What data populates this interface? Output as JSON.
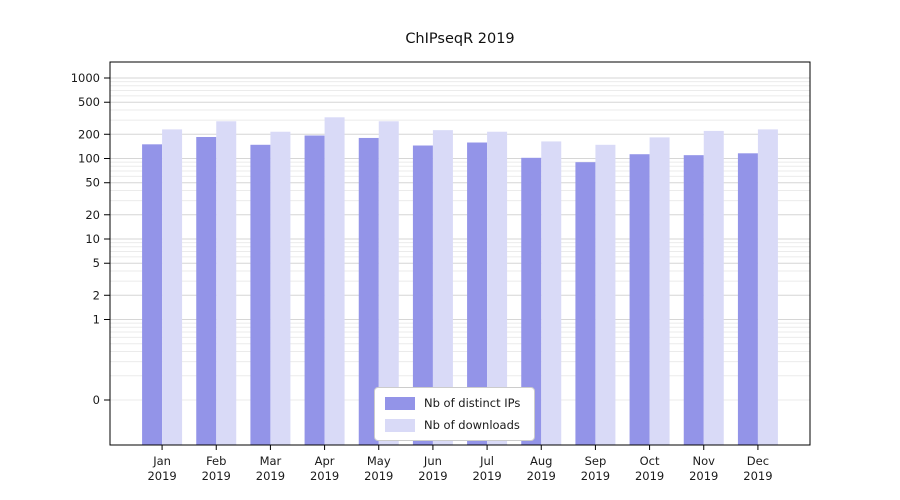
{
  "title": "ChIPseqR 2019",
  "legend": {
    "ips_label": "Nb of distinct IPs",
    "downloads_label": "Nb of downloads"
  },
  "colors": {
    "ips": "#9394e8",
    "downloads": "#d9daf7",
    "grid_major": "#d6d6d6",
    "grid_minor": "#ebebeb",
    "axis": "#000000",
    "background": "#ffffff"
  },
  "chart_data": {
    "type": "bar",
    "title": "ChIPseqR 2019",
    "categories": [
      "Jan",
      "Feb",
      "Mar",
      "Apr",
      "May",
      "Jun",
      "Jul",
      "Aug",
      "Sep",
      "Oct",
      "Nov",
      "Dec"
    ],
    "category_year": "2019",
    "series": [
      {
        "name": "Nb of distinct IPs",
        "color": "#9394e8",
        "values": [
          150,
          185,
          148,
          193,
          180,
          145,
          158,
          102,
          90,
          113,
          110,
          116
        ]
      },
      {
        "name": "Nb of downloads",
        "color": "#d9daf7",
        "values": [
          230,
          290,
          215,
          325,
          290,
          225,
          215,
          163,
          148,
          183,
          220,
          230
        ]
      }
    ],
    "y_scale": "log",
    "y_ticks": [
      1000,
      500,
      200,
      100,
      50,
      20,
      10,
      5,
      2,
      1,
      0
    ],
    "ylim": [
      0,
      1000
    ],
    "grid": true,
    "legend_position": "lower center"
  }
}
